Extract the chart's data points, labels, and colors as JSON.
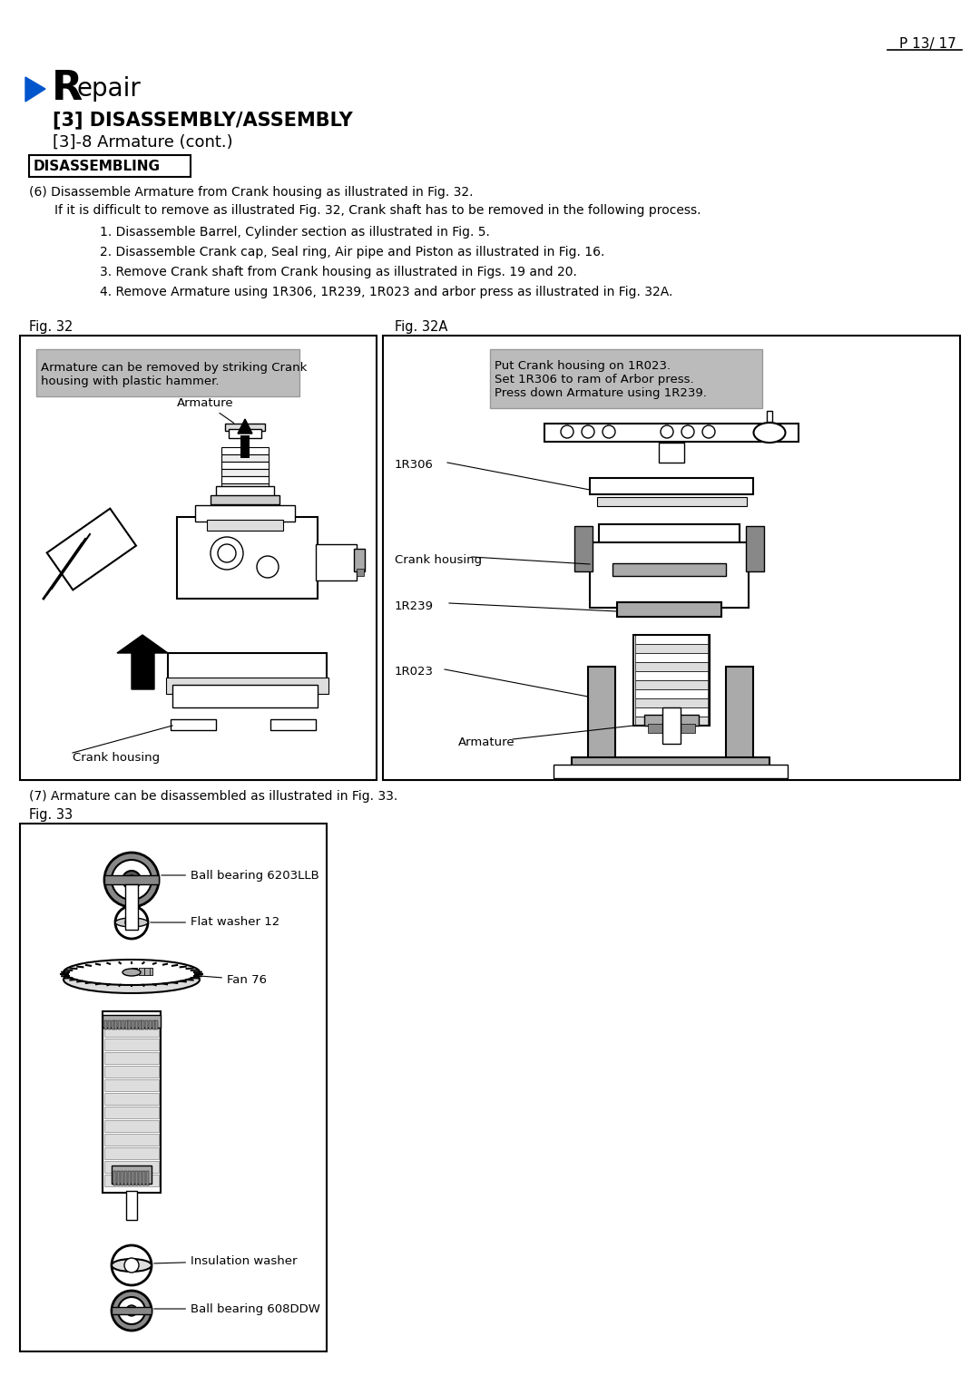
{
  "page_number": "P 13/ 17",
  "section_arrow_color": "#0055CC",
  "section_title_R": "R",
  "section_title_rest": "epair",
  "subsection1": "[3] DISASSEMBLY/ASSEMBLY",
  "subsection2": "[3]-8 Armature (cont.)",
  "disassembling_label": "DISASSEMBLING",
  "para6_line1": "(6) Disassemble Armature from Crank housing as illustrated in Fig. 32.",
  "para6_line2": "If it is difficult to remove as illustrated Fig. 32, Crank shaft has to be removed in the following process.",
  "step1": "1. Disassemble Barrel, Cylinder section as illustrated in Fig. 5.",
  "step2": "2. Disassemble Crank cap, Seal ring, Air pipe and Piston as illustrated in Fig. 16.",
  "step3": "3. Remove Crank shaft from Crank housing as illustrated in Figs. 19 and 20.",
  "step4": "4. Remove Armature using 1R306, 1R239, 1R023 and arbor press as illustrated in Fig. 32A.",
  "fig32_label": "Fig. 32",
  "fig32a_label": "Fig. 32A",
  "fig32_note": "Armature can be removed by striking Crank\nhousing with plastic hammer.",
  "fig32_armature": "Armature",
  "fig32_crank": "Crank housing",
  "fig32a_note": "Put Crank housing on 1R023.\nSet 1R306 to ram of Arbor press.\nPress down Armature using 1R239.",
  "fig32a_1R306": "1R306",
  "fig32a_crank": "Crank housing",
  "fig32a_1R239": "1R239",
  "fig32a_1R023": "1R023",
  "fig32a_armature": "Armature",
  "para7": "(7) Armature can be disassembled as illustrated in Fig. 33.",
  "fig33_label": "Fig. 33",
  "fig33_ball_bearing1": "Ball bearing 6203LLB",
  "fig33_flat_washer": "Flat washer 12",
  "fig33_fan": "Fan 76",
  "fig33_insulation": "Insulation washer",
  "fig33_ball_bearing2": "Ball bearing 608DDW",
  "bg_color": "#FFFFFF",
  "text_color": "#000000",
  "note_fill": "#CCCCCC",
  "border_color": "#000000"
}
